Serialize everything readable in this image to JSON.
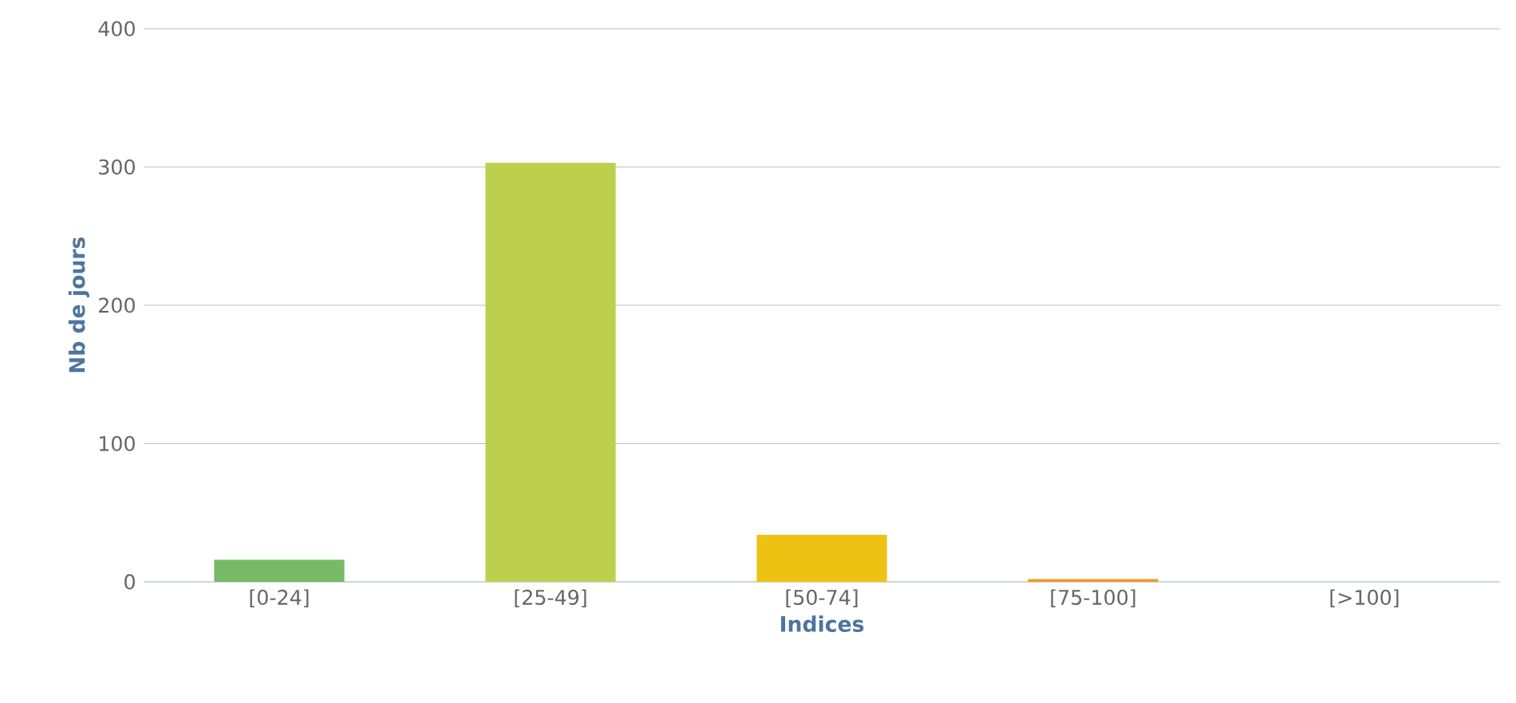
{
  "chart_data": {
    "type": "bar",
    "xlabel": "Indices",
    "ylabel": "Nb de jours",
    "categories": [
      "[0-24]",
      "[25-49]",
      "[50-74]",
      "[75-100]",
      "[>100]"
    ],
    "values": [
      16,
      303,
      34,
      2,
      0
    ],
    "colors": [
      "#77bb66",
      "#bdd04e",
      "#eec212",
      "#ee9a2a",
      "#e05050"
    ],
    "ylim": [
      0,
      400
    ],
    "yticks": [
      0,
      100,
      200,
      300,
      400
    ],
    "grid": "y"
  }
}
